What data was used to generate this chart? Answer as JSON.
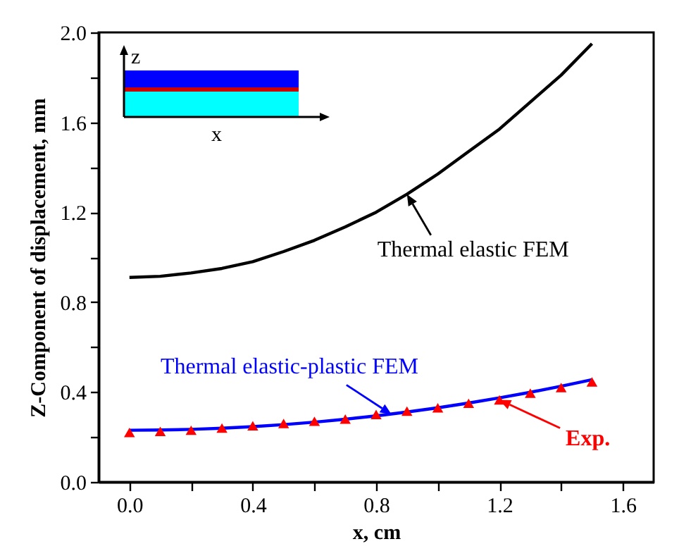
{
  "chart_data": {
    "type": "line",
    "xlabel": "x, cm",
    "ylabel": "Z-Component of displacement, mm",
    "x": [
      0,
      0.1,
      0.2,
      0.3,
      0.4,
      0.5,
      0.6,
      0.7,
      0.8,
      0.9,
      1.0,
      1.1,
      1.2,
      1.3,
      1.4,
      1.5
    ],
    "series": [
      {
        "color": "#000000",
        "values": [
          0.91,
          0.915,
          0.93,
          0.95,
          0.98,
          1.025,
          1.075,
          1.135,
          1.2,
          1.28,
          1.37,
          1.47,
          1.57,
          1.69,
          1.81,
          1.95
        ]
      },
      {
        "color": "#0000ff",
        "values": [
          0.23,
          0.231,
          0.234,
          0.239,
          0.246,
          0.255,
          0.266,
          0.279,
          0.294,
          0.311,
          0.33,
          0.351,
          0.374,
          0.399,
          0.426,
          0.455
        ]
      },
      {
        "type": "scatter",
        "marker": "triangle",
        "color": "#ff0000",
        "values": [
          0.22,
          0.225,
          0.23,
          0.24,
          0.25,
          0.26,
          0.27,
          0.28,
          0.3,
          0.315,
          0.33,
          0.35,
          0.365,
          0.395,
          0.42,
          0.445
        ]
      }
    ],
    "xlim": [
      -0.1,
      1.7
    ],
    "xticks": [
      {
        "value": 0,
        "label": "0.0"
      },
      {
        "value": 0.2,
        "label": null
      },
      0.4,
      {
        "value": 0.6,
        "label": null
      },
      0.8,
      {
        "value": 1.0,
        "label": null
      },
      1.2,
      {
        "value": 1.4,
        "label": null
      },
      1.6
    ],
    "ylim": [
      0,
      2.0
    ],
    "yticks": [
      {
        "value": 0,
        "label": "0.0"
      },
      {
        "value": 0.2,
        "label": null
      },
      0.4,
      {
        "value": 0.6,
        "label": null
      },
      0.8,
      {
        "value": 1.0,
        "label": null
      },
      1.2,
      {
        "value": 1.4,
        "label": null
      },
      1.6,
      {
        "value": 1.8,
        "label": null
      },
      {
        "value": 2.0,
        "label": "2.0"
      }
    ],
    "grid": false,
    "annotations": [
      {
        "text": "Thermal elastic FEM",
        "x": 0.9,
        "y": 1.28
      },
      {
        "text": "Thermal elastic-plastic FEM",
        "x": 0.85,
        "y": 0.3
      },
      {
        "text": "Exp.",
        "x": 1.2,
        "y": 0.365
      },
      "z",
      "x"
    ]
  }
}
